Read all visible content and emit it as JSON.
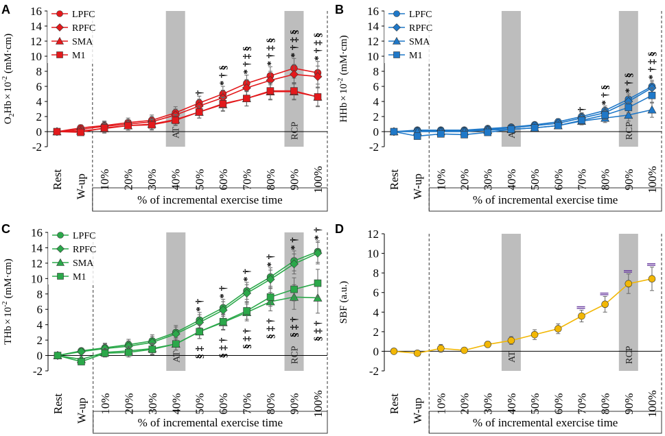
{
  "figure": {
    "x_ticks": [
      "Rest",
      "W-up",
      "10%",
      "20%",
      "30%",
      "40%",
      "50%",
      "60%",
      "70%",
      "80%",
      "90%",
      "100%"
    ],
    "x_group_label": "% of incremental exercise time",
    "shade_labels": [
      "AT",
      "RCP"
    ]
  },
  "chart_data": [
    {
      "panel": "A",
      "type": "line",
      "ylabel": "O2Hb × 10-2 (mM·cm)",
      "ylabel_parts": [
        "O",
        "2",
        "Hb",
        "×",
        "10",
        "-2",
        "(mM·cm)"
      ],
      "ylim": [
        -2,
        16
      ],
      "yticks": [
        "-2",
        "0",
        "2",
        "4",
        "6",
        "8",
        "10",
        "12",
        "14",
        "16"
      ],
      "shades": [
        {
          "label": "AT",
          "x_index": 5
        },
        {
          "label": "RCP",
          "x_index": 10
        }
      ],
      "categories": [
        "Rest",
        "W-up",
        "10%",
        "20%",
        "30%",
        "40%",
        "50%",
        "60%",
        "70%",
        "80%",
        "90%",
        "100%"
      ],
      "color": "#E3191C",
      "series": [
        {
          "name": "LPFC",
          "marker": "circle",
          "values": [
            0,
            0.5,
            0.8,
            1.2,
            1.5,
            2.5,
            3.8,
            5.0,
            6.4,
            7.4,
            8.4,
            7.8
          ],
          "err": [
            0,
            0.4,
            0.6,
            0.6,
            0.7,
            0.8,
            0.9,
            1.0,
            1.1,
            1.2,
            1.3,
            1.5
          ]
        },
        {
          "name": "RPFC",
          "marker": "diamond",
          "values": [
            0,
            0.3,
            0.7,
            1.0,
            1.3,
            2.2,
            3.4,
            4.5,
            5.8,
            6.8,
            7.6,
            7.3
          ],
          "err": [
            0,
            0.4,
            0.6,
            0.6,
            0.7,
            0.8,
            0.9,
            1.0,
            1.1,
            1.2,
            1.3,
            1.4
          ]
        },
        {
          "name": "SMA",
          "marker": "triangle",
          "values": [
            0,
            0.1,
            0.4,
            0.8,
            1.0,
            1.6,
            2.6,
            3.6,
            4.4,
            5.3,
            5.3,
            4.6
          ],
          "err": [
            0,
            0.4,
            0.6,
            0.6,
            0.7,
            0.7,
            0.8,
            0.9,
            1.0,
            1.1,
            1.1,
            1.2
          ]
        },
        {
          "name": "M1",
          "marker": "square",
          "values": [
            0,
            -0.1,
            0.5,
            0.8,
            0.9,
            1.5,
            2.6,
            3.7,
            4.4,
            5.4,
            5.4,
            4.6
          ],
          "err": [
            0,
            0.4,
            0.6,
            0.6,
            0.7,
            0.7,
            0.8,
            0.9,
            1.0,
            1.1,
            1.1,
            1.3
          ]
        }
      ],
      "annotations": [
        {
          "x_index": 6,
          "text": "†"
        },
        {
          "x_index": 7,
          "text": "* † §"
        },
        {
          "x_index": 8,
          "text": "* † ‡ §"
        },
        {
          "x_index": 9,
          "text": "* † ‡ §"
        },
        {
          "x_index": 10,
          "text": "* † ‡ §"
        },
        {
          "x_index": 11,
          "text": "* † ‡ §"
        }
      ]
    },
    {
      "panel": "B",
      "type": "line",
      "ylabel": "HHb × 10-2 (mM·cm)",
      "ylabel_parts": [
        "",
        "",
        "HHb",
        "×",
        "10",
        "-2",
        "(mM·cm)"
      ],
      "ylim": [
        -2,
        16
      ],
      "yticks": [
        "-2",
        "0",
        "2",
        "4",
        "6",
        "8",
        "10",
        "12",
        "14",
        "16"
      ],
      "shades": [
        {
          "label": "AT",
          "x_index": 5
        },
        {
          "label": "RCP",
          "x_index": 10
        }
      ],
      "categories": [
        "Rest",
        "W-up",
        "10%",
        "20%",
        "30%",
        "40%",
        "50%",
        "60%",
        "70%",
        "80%",
        "90%",
        "100%"
      ],
      "color": "#1F78C8",
      "series": [
        {
          "name": "LPFC",
          "marker": "circle",
          "values": [
            0,
            0.2,
            0.2,
            0.2,
            0.4,
            0.6,
            0.9,
            1.3,
            2.0,
            2.8,
            4.3,
            6.0
          ],
          "err": [
            0,
            0.2,
            0.2,
            0.2,
            0.3,
            0.3,
            0.3,
            0.4,
            0.5,
            0.6,
            0.7,
            0.8
          ]
        },
        {
          "name": "RPFC",
          "marker": "diamond",
          "values": [
            0,
            0.1,
            0.1,
            0.1,
            0.3,
            0.5,
            0.8,
            1.1,
            1.8,
            2.5,
            4.0,
            5.8
          ],
          "err": [
            0,
            0.2,
            0.2,
            0.2,
            0.3,
            0.3,
            0.3,
            0.4,
            0.5,
            0.6,
            0.7,
            0.8
          ]
        },
        {
          "name": "SMA",
          "marker": "triangle",
          "values": [
            0,
            0.0,
            0.0,
            0.0,
            0.2,
            0.3,
            0.5,
            0.8,
            1.4,
            1.8,
            2.2,
            2.9
          ],
          "err": [
            0,
            0.2,
            0.2,
            0.2,
            0.3,
            0.3,
            0.3,
            0.4,
            0.5,
            0.6,
            0.8,
            1.0
          ]
        },
        {
          "name": "M1",
          "marker": "square",
          "values": [
            0,
            -0.6,
            -0.3,
            -0.4,
            -0.1,
            0.3,
            0.5,
            0.8,
            1.5,
            2.2,
            3.2,
            4.8
          ],
          "err": [
            0,
            0.2,
            0.2,
            0.2,
            0.3,
            0.3,
            0.3,
            0.4,
            0.5,
            0.6,
            0.7,
            1.0
          ]
        }
      ],
      "annotations": [
        {
          "x_index": 8,
          "text": "†"
        },
        {
          "x_index": 9,
          "text": "* † §"
        },
        {
          "x_index": 10,
          "text": "* † §"
        },
        {
          "x_index": 11,
          "text": "* † ‡ §"
        }
      ]
    },
    {
      "panel": "C",
      "type": "line",
      "ylabel": "THb × 10-2 (mM·cm)",
      "ylabel_parts": [
        "",
        "",
        "THb",
        "×",
        "10",
        "-2",
        "(mM·cm)"
      ],
      "ylim": [
        -2,
        16
      ],
      "yticks": [
        "-2",
        "0",
        "2",
        "4",
        "6",
        "8",
        "10",
        "12",
        "14",
        "16"
      ],
      "shades": [
        {
          "label": "AT",
          "x_index": 5
        },
        {
          "label": "RCP",
          "x_index": 10
        }
      ],
      "categories": [
        "Rest",
        "W-up",
        "10%",
        "20%",
        "30%",
        "40%",
        "50%",
        "60%",
        "70%",
        "80%",
        "90%",
        "100%"
      ],
      "color": "#2BA84A",
      "series": [
        {
          "name": "LPFC",
          "marker": "circle",
          "values": [
            0,
            0.6,
            1.0,
            1.4,
            1.9,
            3.0,
            4.6,
            6.2,
            8.4,
            10.2,
            12.3,
            13.5
          ],
          "err": [
            0,
            0.3,
            0.6,
            0.7,
            0.8,
            0.9,
            1.0,
            1.1,
            1.1,
            1.2,
            1.3,
            1.4
          ]
        },
        {
          "name": "RPFC",
          "marker": "diamond",
          "values": [
            0,
            0.5,
            0.9,
            1.2,
            1.7,
            2.8,
            4.3,
            5.9,
            8.1,
            9.9,
            11.9,
            13.3
          ],
          "err": [
            0,
            0.3,
            0.6,
            0.7,
            0.8,
            0.9,
            1.0,
            1.1,
            1.1,
            1.2,
            1.3,
            1.4
          ]
        },
        {
          "name": "SMA",
          "marker": "triangle",
          "values": [
            0,
            -0.5,
            0.4,
            0.6,
            0.9,
            1.5,
            3.1,
            4.3,
            5.6,
            7.0,
            7.6,
            7.5
          ],
          "err": [
            0,
            0.3,
            0.5,
            0.6,
            0.7,
            0.8,
            0.9,
            1.0,
            1.1,
            1.2,
            1.6,
            2.0
          ]
        },
        {
          "name": "M1",
          "marker": "square",
          "values": [
            0,
            -0.8,
            0.3,
            0.4,
            0.8,
            1.5,
            3.1,
            4.4,
            5.8,
            7.6,
            8.6,
            9.4
          ],
          "err": [
            0,
            0.3,
            0.5,
            0.6,
            0.7,
            0.8,
            0.9,
            1.0,
            1.1,
            1.2,
            1.5,
            1.8
          ]
        }
      ],
      "annotations": [
        {
          "x_index": 6,
          "text": "* †"
        },
        {
          "x_index": 7,
          "text": "* †"
        },
        {
          "x_index": 8,
          "text": "* †"
        },
        {
          "x_index": 9,
          "text": "* †"
        },
        {
          "x_index": 10,
          "text": "* †"
        },
        {
          "x_index": 11,
          "text": "* †"
        }
      ],
      "annotations_below": [
        {
          "x_index": 6,
          "text": "§ ‡"
        },
        {
          "x_index": 7,
          "text": "§ ‡ †"
        },
        {
          "x_index": 8,
          "text": "§ ‡ †"
        },
        {
          "x_index": 9,
          "text": "§ ‡ †"
        },
        {
          "x_index": 10,
          "text": "§ ‡ †"
        },
        {
          "x_index": 11,
          "text": "§ ‡ †"
        }
      ]
    },
    {
      "panel": "D",
      "type": "line",
      "ylabel": "SBF (a.u.)",
      "ylabel_parts": [
        "",
        "",
        "SBF",
        "",
        "",
        "",
        "(a.u.)"
      ],
      "ylim": [
        -2,
        12
      ],
      "yticks": [
        "-2",
        "0",
        "2",
        "4",
        "6",
        "8",
        "10",
        "12"
      ],
      "shades": [
        {
          "label": "AT",
          "x_index": 5
        },
        {
          "label": "RCP",
          "x_index": 10
        }
      ],
      "categories": [
        "Rest",
        "W-up",
        "10%",
        "20%",
        "30%",
        "40%",
        "50%",
        "60%",
        "70%",
        "80%",
        "90%",
        "100%"
      ],
      "color": "#F2B705",
      "series": [
        {
          "name": "SBF",
          "marker": "circle",
          "values": [
            0,
            -0.2,
            0.3,
            0.1,
            0.7,
            1.1,
            1.7,
            2.3,
            3.6,
            4.8,
            6.9,
            7.4
          ],
          "err": [
            0,
            0.2,
            0.4,
            0.2,
            0.3,
            0.4,
            0.5,
            0.5,
            0.6,
            0.8,
            1.0,
            1.2
          ]
        }
      ],
      "annotations": [
        {
          "x_index": 8,
          "text": "‖"
        },
        {
          "x_index": 9,
          "text": "‖"
        },
        {
          "x_index": 10,
          "text": "‖"
        },
        {
          "x_index": 11,
          "text": "‖"
        }
      ]
    }
  ]
}
